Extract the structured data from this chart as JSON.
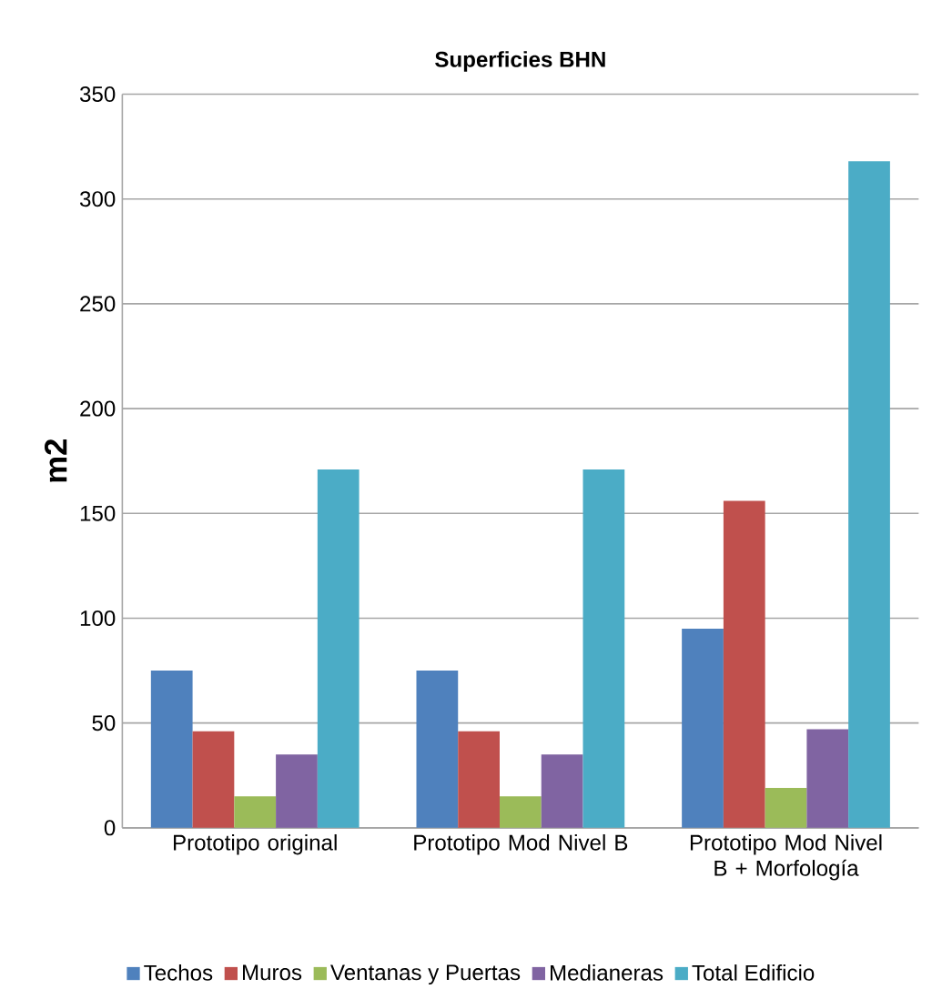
{
  "chart_data": {
    "type": "bar",
    "title": "Superficies BHN",
    "ylabel": "m2",
    "categories": [
      "Prototipo original",
      "Prototipo Mod Nivel B",
      "Prototipo Mod Nivel B + Morfología"
    ],
    "series": [
      {
        "name": "Techos",
        "color": "#4f81bd",
        "values": [
          75,
          75,
          95
        ]
      },
      {
        "name": "Muros",
        "color": "#c0504d",
        "values": [
          46,
          46,
          156
        ]
      },
      {
        "name": "Ventanas y Puertas",
        "color": "#9bbb59",
        "values": [
          15,
          15,
          19
        ]
      },
      {
        "name": "Medianeras",
        "color": "#8064a2",
        "values": [
          35,
          35,
          47
        ]
      },
      {
        "name": "Total Edificio",
        "color": "#4bacc6",
        "values": [
          171,
          171,
          318
        ]
      }
    ],
    "ylim": [
      0,
      350
    ],
    "yticks": [
      0,
      50,
      100,
      150,
      200,
      250,
      300,
      350
    ],
    "grid": "y",
    "legend": "bottom"
  }
}
